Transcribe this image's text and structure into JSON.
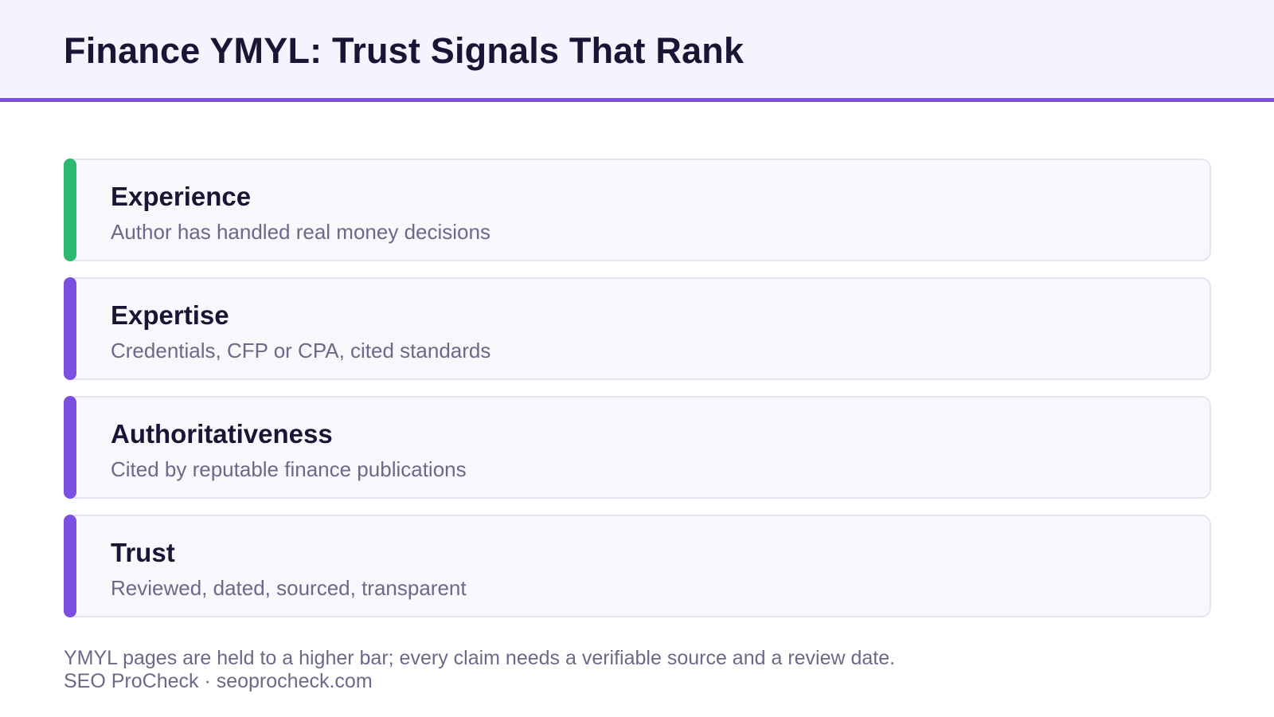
{
  "header": {
    "title": "Finance YMYL: Trust Signals That Rank"
  },
  "colors": {
    "header_bg": "#f5f3fd",
    "header_rule": "#7b50e0",
    "accent_green": "#2db872",
    "accent_purple": "#7b50e0",
    "card_bg": "#f8f7fc",
    "title_text": "#1a1535",
    "muted_text": "#6c6889"
  },
  "cards": [
    {
      "title": "Experience",
      "description": "Author has handled real money decisions",
      "accent_color": "#2db872"
    },
    {
      "title": "Expertise",
      "description": "Credentials, CFP or CPA, cited standards",
      "accent_color": "#7b50e0"
    },
    {
      "title": "Authoritativeness",
      "description": "Cited by reputable finance publications",
      "accent_color": "#7b50e0"
    },
    {
      "title": "Trust",
      "description": "Reviewed, dated, sourced, transparent",
      "accent_color": "#7b50e0"
    }
  ],
  "footer": {
    "note": "YMYL pages are held to a higher bar; every claim needs a verifiable source and a review date.",
    "credit": "SEO ProCheck · seoprocheck.com"
  }
}
